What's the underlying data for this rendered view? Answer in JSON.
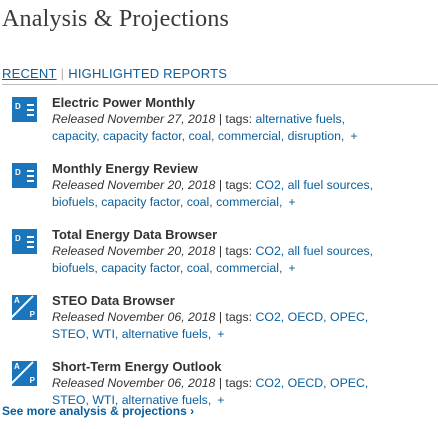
{
  "page": {
    "title": "Analysis & Projections"
  },
  "tabs": [
    {
      "label": "RECENT"
    },
    {
      "label": "HIGHLIGHTED REPORTS"
    }
  ],
  "tab_separator": "|",
  "items": [
    {
      "icon": "d-document-icon",
      "title": "Electric Power Monthly",
      "released": "Released November 27, 2018",
      "tags_label": "| tags:",
      "tags_line1": [
        "alternative fuels,"
      ],
      "tags_line2": [
        "capacity,",
        "capacity factor,",
        "coal,",
        "commercial,",
        "disruption,"
      ],
      "plus": "+"
    },
    {
      "icon": "d-document-icon",
      "title": "Monthly Energy Review",
      "released": "Released November 20, 2018",
      "tags_label": "| tags:",
      "tags_line1": [
        "CO2,",
        "all fuel sources,"
      ],
      "tags_line2": [
        "biofuels,",
        "capacity factor,",
        "coal,",
        "commercial,"
      ],
      "plus": "+"
    },
    {
      "icon": "d-document-icon",
      "title": "Total Energy Data Browser",
      "released": "Released November 20, 2018",
      "tags_label": "| tags:",
      "tags_line1": [
        "CO2,",
        "all fuel sources,"
      ],
      "tags_line2": [
        "biofuels,",
        "capacity factor,",
        "coal,",
        "commercial,"
      ],
      "plus": "+"
    },
    {
      "icon": "ap-analysis-icon",
      "title": "STEO Data Browser",
      "released": "Released November 06, 2018",
      "tags_label": "| tags:",
      "tags_line1": [
        "CO2,",
        "OECD,",
        "OPEC,"
      ],
      "tags_line2": [
        "STEO,",
        "WTI,",
        "alternative fuels,"
      ],
      "plus": "+"
    },
    {
      "icon": "ap-analysis-icon",
      "title": "Short-Term Energy Outlook",
      "released": "Released November 06, 2018",
      "tags_label": "| tags:",
      "tags_line1": [
        "CO2,",
        "OECD,",
        "OPEC,"
      ],
      "tags_line2": [
        "STEO,",
        "WTI,",
        "alternative fuels,"
      ],
      "plus": "+"
    }
  ],
  "icon_letters": {
    "d": "D",
    "a": "A",
    "p": "P"
  },
  "see_more": {
    "label": "See more analysis & projections ›"
  }
}
